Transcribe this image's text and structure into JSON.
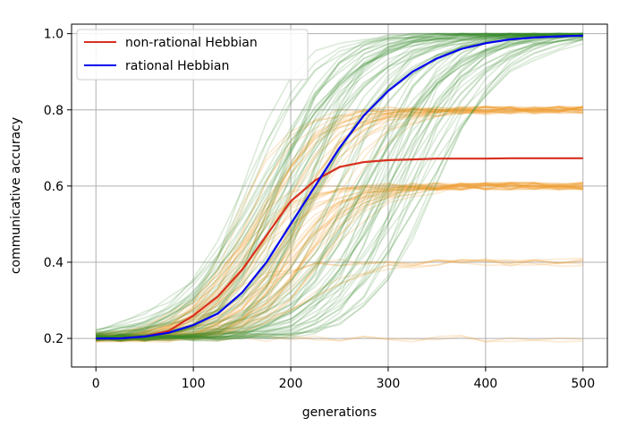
{
  "chart_data": {
    "type": "line",
    "xlabel": "generations",
    "ylabel": "communicative accuracy",
    "xlim": [
      -25,
      525
    ],
    "ylim": [
      0.125,
      1.025
    ],
    "xticks": [
      0,
      100,
      200,
      300,
      400,
      500
    ],
    "yticks": [
      0.2,
      0.4,
      0.6,
      0.8,
      1.0
    ],
    "xtick_labels": [
      "0",
      "100",
      "200",
      "300",
      "400",
      "500"
    ],
    "ytick_labels": [
      "0.2",
      "0.4",
      "0.6",
      "0.8",
      "1.0"
    ],
    "grid": true,
    "legend_position": "top-left",
    "series": [
      {
        "name": "non-rational Hebbian",
        "color": "#d7301f",
        "x": [
          0,
          25,
          50,
          75,
          100,
          125,
          150,
          175,
          200,
          225,
          250,
          275,
          300,
          325,
          350,
          375,
          400,
          425,
          450,
          475,
          500
        ],
        "values": [
          0.2,
          0.2,
          0.205,
          0.22,
          0.26,
          0.31,
          0.38,
          0.47,
          0.56,
          0.615,
          0.65,
          0.663,
          0.668,
          0.67,
          0.672,
          0.672,
          0.672,
          0.673,
          0.673,
          0.673,
          0.673
        ]
      },
      {
        "name": "rational Hebbian",
        "color": "#0000ee",
        "x": [
          0,
          25,
          50,
          75,
          100,
          125,
          150,
          175,
          200,
          225,
          250,
          275,
          300,
          325,
          350,
          375,
          400,
          425,
          450,
          475,
          500
        ],
        "values": [
          0.2,
          0.2,
          0.205,
          0.215,
          0.235,
          0.265,
          0.32,
          0.4,
          0.5,
          0.6,
          0.7,
          0.785,
          0.85,
          0.9,
          0.935,
          0.96,
          0.975,
          0.985,
          0.99,
          0.993,
          0.995
        ]
      }
    ],
    "background_runs": {
      "green": {
        "color": "#3a8a2a",
        "count": 80,
        "final_value": 1.0,
        "x": [
          0,
          25,
          50,
          75,
          100,
          125,
          150,
          175,
          200,
          225,
          250,
          275,
          300,
          325,
          350,
          375,
          400,
          425,
          450,
          475,
          500
        ]
      },
      "orange": {
        "color": "#f0a030",
        "plateaus": [
          0.8,
          0.6,
          0.4,
          0.2
        ],
        "runs_per_plateau": [
          30,
          30,
          6,
          2
        ],
        "x": [
          0,
          25,
          50,
          75,
          100,
          125,
          150,
          175,
          200,
          225,
          250,
          275,
          300,
          325,
          350,
          375,
          400,
          425,
          450,
          475,
          500
        ]
      }
    }
  }
}
